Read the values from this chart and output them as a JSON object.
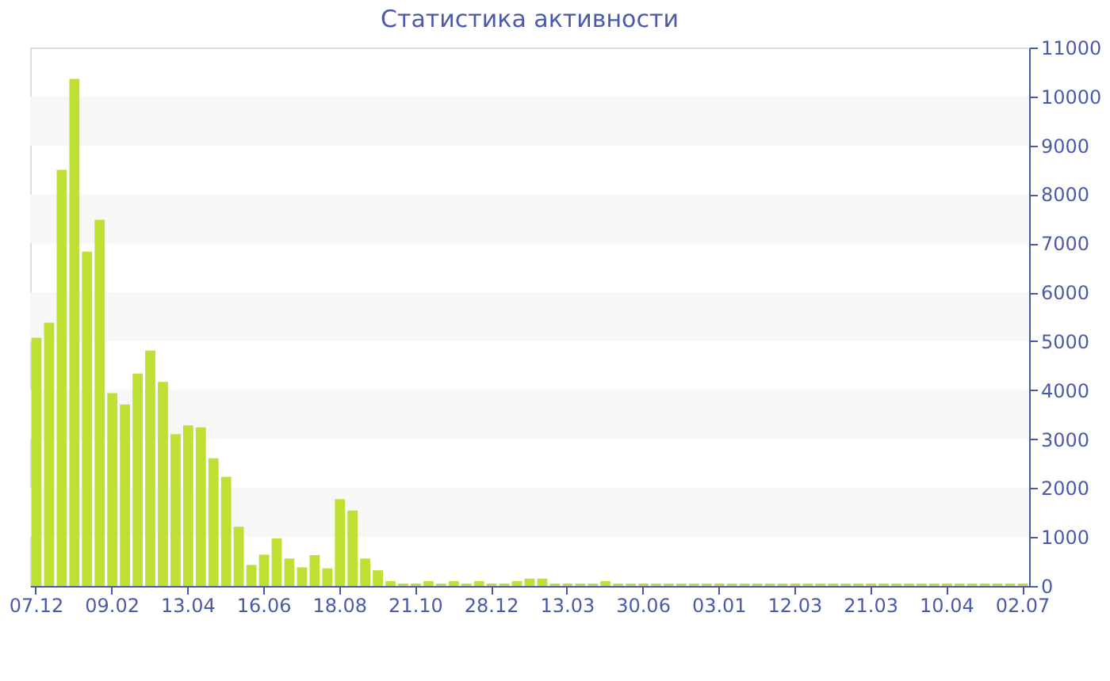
{
  "chart_data": {
    "type": "bar",
    "title": "Статистика активности",
    "categories": [
      "07.12",
      null,
      null,
      null,
      null,
      null,
      "09.02",
      null,
      null,
      null,
      null,
      null,
      "13.04",
      null,
      null,
      null,
      null,
      null,
      "16.06",
      null,
      null,
      null,
      null,
      null,
      "18.08",
      null,
      null,
      null,
      null,
      null,
      "21.10",
      null,
      null,
      null,
      null,
      null,
      "28.12",
      null,
      null,
      null,
      null,
      null,
      "13.03",
      null,
      null,
      null,
      null,
      null,
      "30.06",
      null,
      null,
      null,
      null,
      null,
      "03.01",
      null,
      null,
      null,
      null,
      null,
      "12.03",
      null,
      null,
      null,
      null,
      null,
      "21.03",
      null,
      null,
      null,
      null,
      null,
      "10.04",
      null,
      null,
      null,
      null,
      null,
      "02.07"
    ],
    "values": [
      5070,
      5380,
      8500,
      10360,
      6830,
      7480,
      3940,
      3710,
      4340,
      4810,
      4170,
      3100,
      3280,
      3240,
      2610,
      2230,
      1210,
      430,
      640,
      970,
      560,
      380,
      630,
      360,
      1770,
      1540,
      560,
      320,
      100,
      50,
      50,
      100,
      50,
      100,
      50,
      100,
      50,
      50,
      100,
      150,
      150,
      50,
      50,
      50,
      50,
      100,
      50,
      50,
      50,
      50,
      50,
      50,
      50,
      50,
      50,
      50,
      50,
      50,
      50,
      50,
      50,
      50,
      50,
      50,
      50,
      50,
      50,
      50,
      50,
      50,
      50,
      50,
      50,
      50,
      50,
      50,
      50,
      50,
      50
    ],
    "color": "#bde033",
    "ylim": [
      0,
      11000
    ],
    "yticks": [
      0,
      1000,
      2000,
      3000,
      4000,
      5000,
      6000,
      7000,
      8000,
      9000,
      10000,
      11000
    ],
    "bands": [
      {
        "axis": "y",
        "from": 1000,
        "to": 2000,
        "color": "#f7f7f7"
      },
      {
        "axis": "y",
        "from": 3000,
        "to": 4000,
        "color": "#f7f7f7"
      },
      {
        "axis": "y",
        "from": 5000,
        "to": 6000,
        "color": "#f7f7f7"
      },
      {
        "axis": "y",
        "from": 7000,
        "to": 8000,
        "color": "#f7f7f7"
      },
      {
        "axis": "y",
        "from": 9000,
        "to": 10000,
        "color": "#f7f7f7"
      }
    ]
  }
}
